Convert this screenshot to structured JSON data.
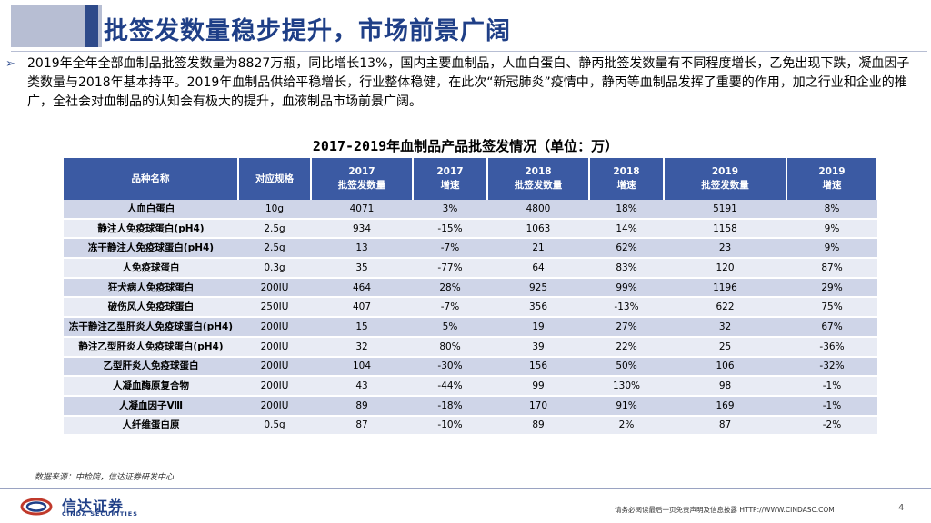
{
  "header": {
    "title": "批签发数量稳步提升，市场前景广阔"
  },
  "body": {
    "bullet_text": "2019年全年全部血制品批签发数量为8827万瓶，同比增长13%，国内主要血制品，人血白蛋白、静丙批签发数量有不同程度增长，乙免出现下跌，凝血因子类数量与2018年基本持平。2019年血制品供给平稳增长，行业整体稳健，在此次“新冠肺炎”疫情中，静丙等血制品发挥了重要的作用，加之行业和企业的推广，全社会对血制品的认知会有极大的提升，血液制品市场前景广阔。"
  },
  "table": {
    "title": "2017-2019年血制品产品批签发情况（单位：万）",
    "headers": [
      "品种名称",
      "对应规格",
      "2017\n批签发数量",
      "2017\n增速",
      "2018\n批签发数量",
      "2018\n增速",
      "2019\n批签发数量",
      "2019\n增速"
    ],
    "rows": [
      [
        "人血白蛋白",
        "10g",
        "4071",
        "3%",
        "4800",
        "18%",
        "5191",
        "8%"
      ],
      [
        "静注人免疫球蛋白(pH4)",
        "2.5g",
        "934",
        "-15%",
        "1063",
        "14%",
        "1158",
        "9%"
      ],
      [
        "冻干静注人免疫球蛋白(pH4)",
        "2.5g",
        "13",
        "-7%",
        "21",
        "62%",
        "23",
        "9%"
      ],
      [
        "人免疫球蛋白",
        "0.3g",
        "35",
        "-77%",
        "64",
        "83%",
        "120",
        "87%"
      ],
      [
        "狂犬病人免疫球蛋白",
        "200IU",
        "464",
        "28%",
        "925",
        "99%",
        "1196",
        "29%"
      ],
      [
        "破伤风人免疫球蛋白",
        "250IU",
        "407",
        "-7%",
        "356",
        "-13%",
        "622",
        "75%"
      ],
      [
        "冻干静注乙型肝炎人免疫球蛋白(pH4)",
        "200IU",
        "15",
        "5%",
        "19",
        "27%",
        "32",
        "67%"
      ],
      [
        "静注乙型肝炎人免疫球蛋白(pH4)",
        "200IU",
        "32",
        "80%",
        "39",
        "22%",
        "25",
        "-36%"
      ],
      [
        "乙型肝炎人免疫球蛋白",
        "200IU",
        "104",
        "-30%",
        "156",
        "50%",
        "106",
        "-32%"
      ],
      [
        "人凝血酶原复合物",
        "200IU",
        "43",
        "-44%",
        "99",
        "130%",
        "98",
        "-1%"
      ],
      [
        "人凝血因子Ⅷ",
        "200IU",
        "89",
        "-18%",
        "170",
        "91%",
        "169",
        "-1%"
      ],
      [
        "人纤维蛋白原",
        "0.5g",
        "87",
        "-10%",
        "89",
        "2%",
        "87",
        "-2%"
      ]
    ]
  },
  "footer": {
    "source": "数据来源：中检院，信达证券研发中心",
    "logo_cn": "信达证券",
    "logo_en": "CINDA SECURITIES",
    "disclaimer": "请务必阅读最后一页免责声明及信息披露   HTTP://WWW.CINDASC.COM",
    "page_number": "4"
  },
  "colors": {
    "accent": "#1f3f87",
    "header_bg": "#3b5aa3",
    "row_odd": "#cfd5e8",
    "row_even": "#e8ebf4"
  }
}
